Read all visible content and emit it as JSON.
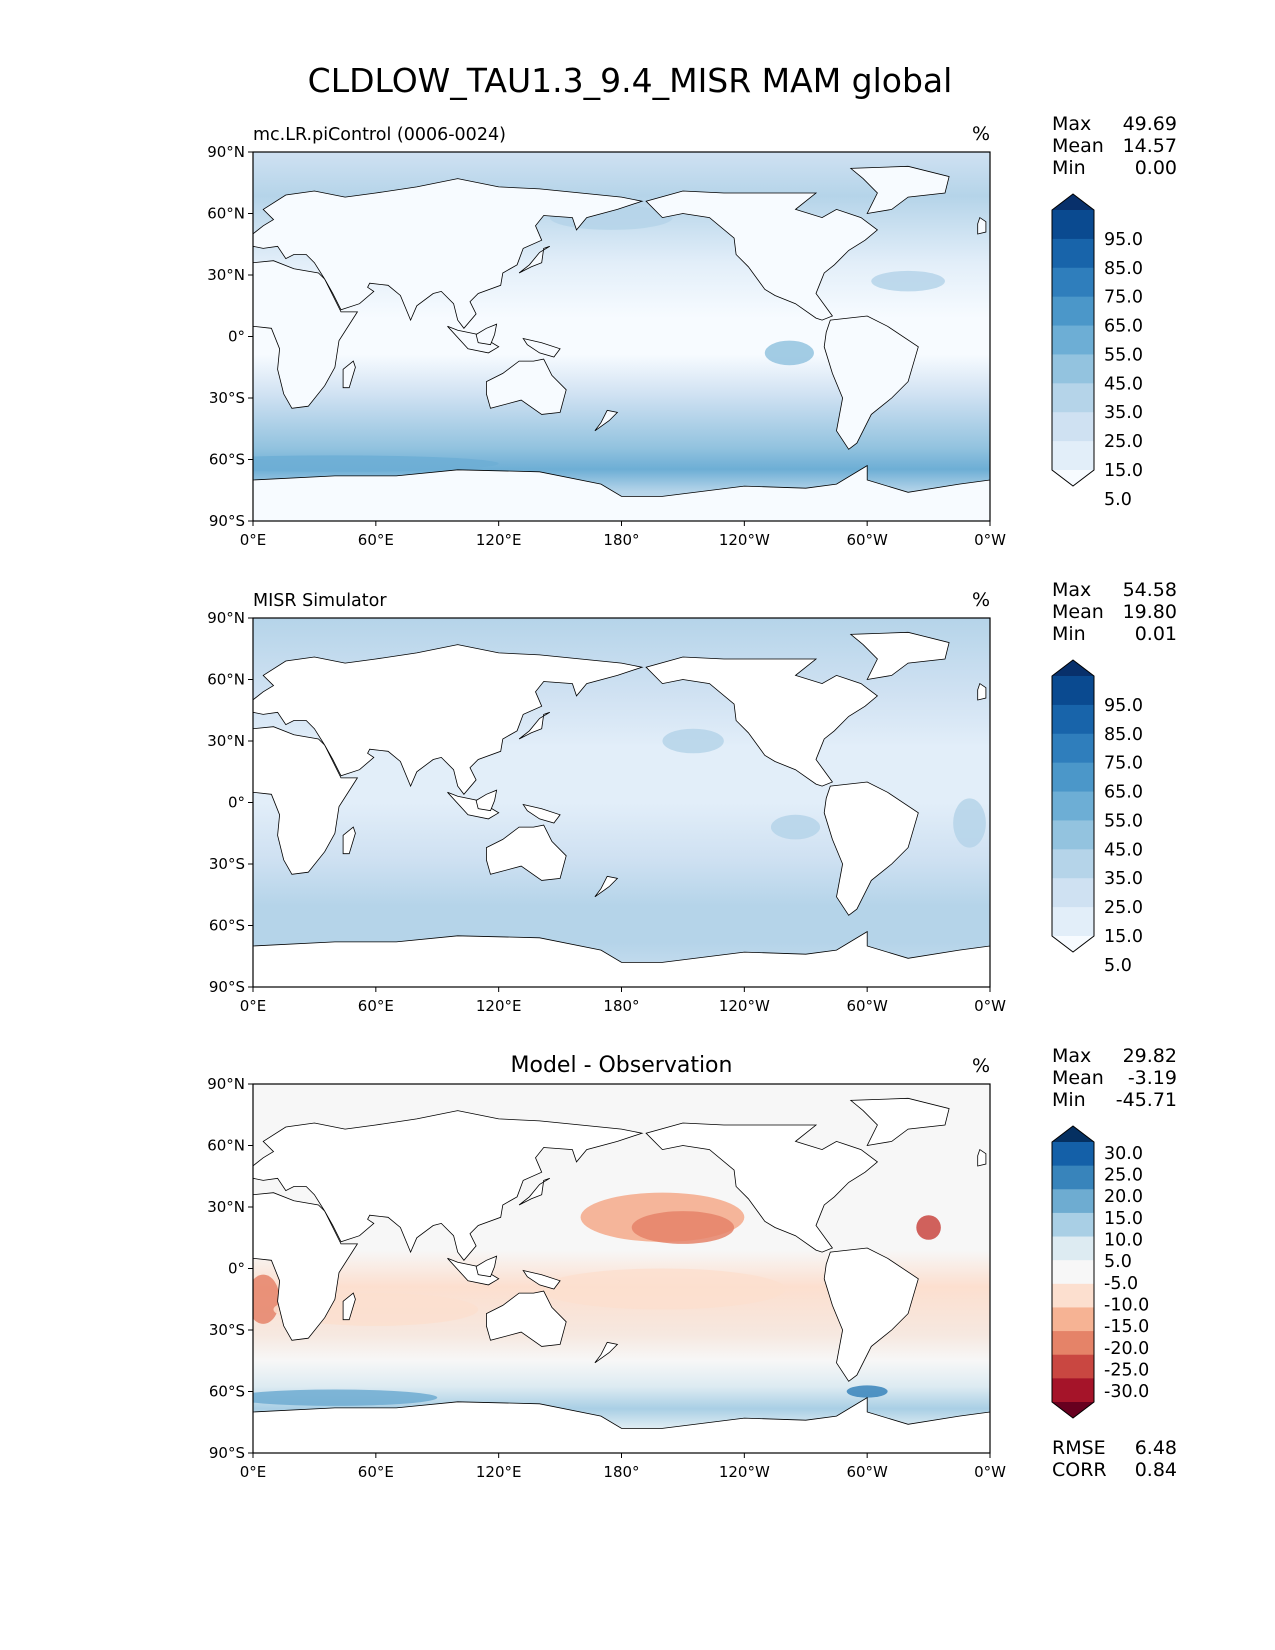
{
  "title": "CLDLOW_TAU1.3_9.4_MISR MAM global",
  "lon_ticks": [
    "0°E",
    "60°E",
    "120°E",
    "180°",
    "120°W",
    "60°W",
    "0°W"
  ],
  "lat_ticks": [
    "90°N",
    "60°N",
    "30°N",
    "0°",
    "30°S",
    "60°S",
    "90°S"
  ],
  "palettes": {
    "blues": [
      "#f7fbff",
      "#e2eef9",
      "#cfe1f2",
      "#b5d4e9",
      "#93c3df",
      "#6daed5",
      "#4b97c9",
      "#2f7ebc",
      "#1864aa",
      "#0a4a90",
      "#08306b"
    ],
    "diff": [
      "#67001f",
      "#a51429",
      "#c94741",
      "#e58368",
      "#f6b394",
      "#fcdfcf",
      "#f7f7f7",
      "#ddebf2",
      "#a9cfe5",
      "#6eacd1",
      "#3884bb",
      "#1460a8",
      "#053061"
    ]
  },
  "panels": [
    {
      "subtitle": "mc.LR.piControl (0006-0024)",
      "units": "%",
      "stats": [
        {
          "label": "Max",
          "value": "49.69"
        },
        {
          "label": "Mean",
          "value": "14.57"
        },
        {
          "label": "Min",
          "value": "0.00"
        }
      ],
      "colorbar_ticks": [
        "95.0",
        "85.0",
        "75.0",
        "65.0",
        "55.0",
        "45.0",
        "35.0",
        "25.0",
        "15.0",
        "5.0"
      ]
    },
    {
      "subtitle": "MISR Simulator",
      "units": "%",
      "stats": [
        {
          "label": "Max",
          "value": "54.58"
        },
        {
          "label": "Mean",
          "value": "19.80"
        },
        {
          "label": "Min",
          "value": "0.01"
        }
      ],
      "colorbar_ticks": [
        "95.0",
        "85.0",
        "75.0",
        "65.0",
        "55.0",
        "45.0",
        "35.0",
        "25.0",
        "15.0",
        "5.0"
      ]
    },
    {
      "subtitle": "Model - Observation",
      "units": "%",
      "stats": [
        {
          "label": "Max",
          "value": "29.82"
        },
        {
          "label": "Mean",
          "value": "-3.19"
        },
        {
          "label": "Min",
          "value": "-45.71"
        }
      ],
      "colorbar_ticks": [
        "30.0",
        "25.0",
        "20.0",
        "15.0",
        "10.0",
        "5.0",
        "-5.0",
        "-10.0",
        "-15.0",
        "-20.0",
        "-25.0",
        "-30.0"
      ],
      "extra_stats": [
        {
          "label": "RMSE",
          "value": "6.48"
        },
        {
          "label": "CORR",
          "value": "0.84"
        }
      ]
    }
  ]
}
